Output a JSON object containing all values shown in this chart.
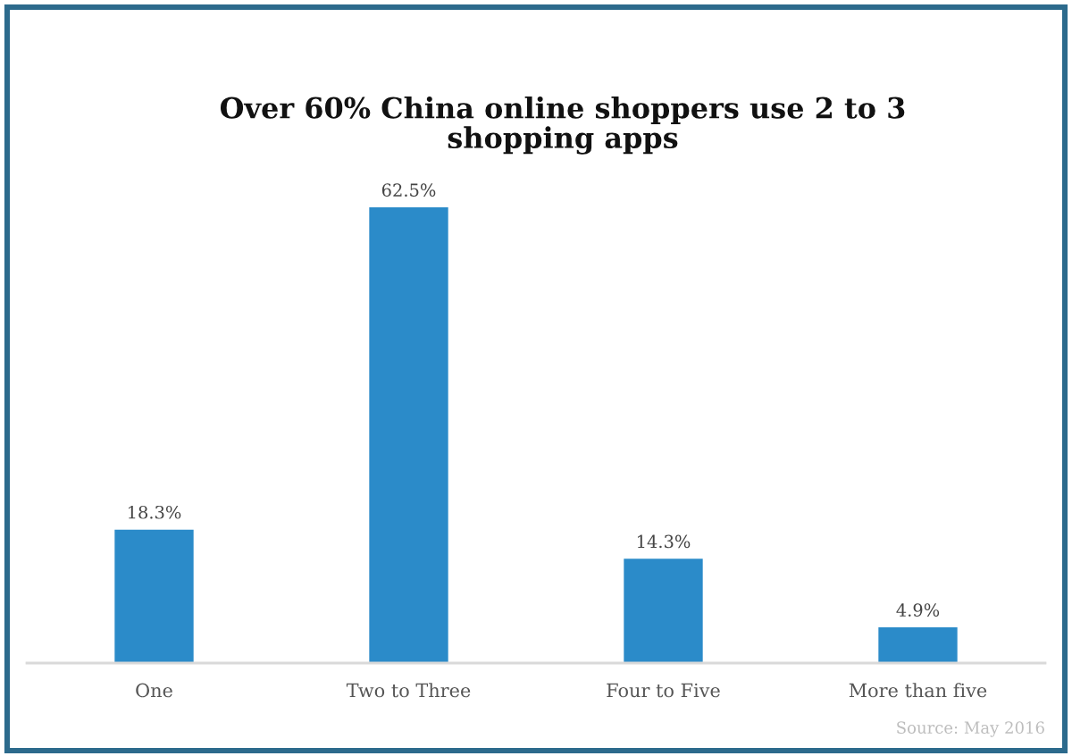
{
  "chart_data": {
    "type": "bar",
    "title": "Over 60% China online shoppers use 2 to 3 shopping apps",
    "categories": [
      "One",
      "Two to Three",
      "Four to Five",
      "More than five"
    ],
    "values": [
      18.3,
      62.5,
      14.3,
      4.9
    ],
    "color": "#2b8bc9",
    "value_labels": [
      "18.3%",
      "62.5%",
      "14.3%",
      "4.9%"
    ],
    "annotations": [
      "Source: May 2016"
    ]
  }
}
